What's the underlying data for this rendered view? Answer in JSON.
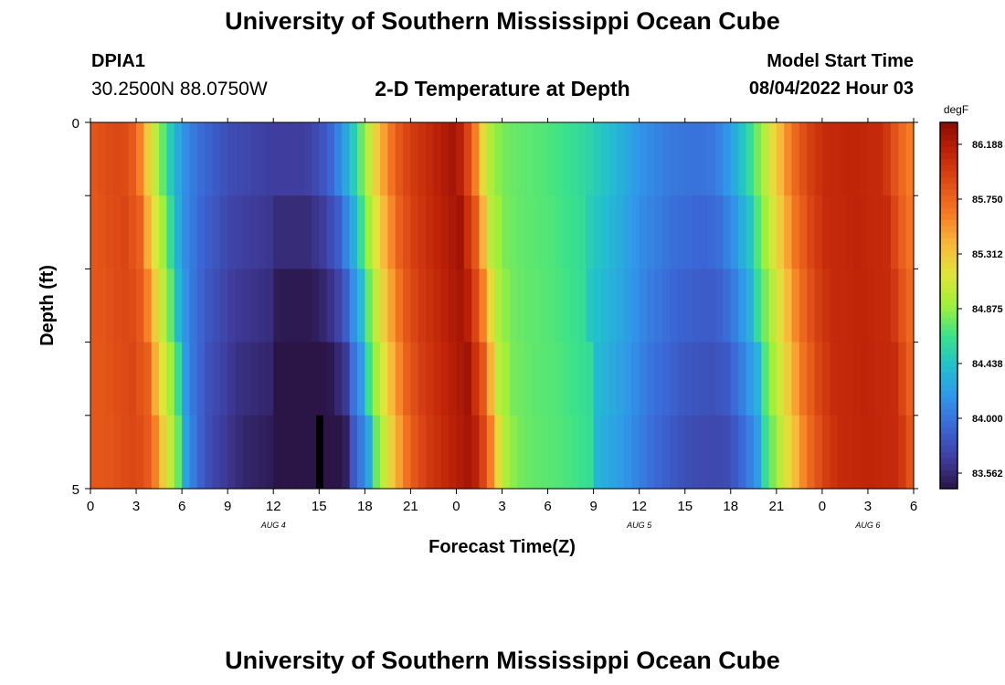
{
  "header": {
    "title": "University of Southern Mississippi Ocean Cube",
    "station_id": "DPIA1",
    "coords": "30.2500N  88.0750W",
    "plot_title": "2-D Temperature at Depth",
    "start_label": "Model Start Time",
    "start_value": "08/04/2022 Hour 03"
  },
  "footer": {
    "title": "University of Southern Mississippi Ocean Cube"
  },
  "chart_data": {
    "type": "heatmap",
    "title": "2-D Temperature at Depth",
    "xlabel": "Forecast Time(Z)",
    "ylabel": "Depth (ft)",
    "units": "degF",
    "x_hours_from_aug4_00z": [
      0,
      54
    ],
    "xtick_labels": [
      "0",
      "3",
      "6",
      "9",
      "12",
      "15",
      "18",
      "21",
      "0",
      "3",
      "6",
      "9",
      "12",
      "15",
      "18",
      "21",
      "0",
      "3",
      "6"
    ],
    "date_labels": [
      {
        "label": "AUG 4",
        "hour": 12
      },
      {
        "label": "AUG 5",
        "hour": 36
      },
      {
        "label": "AUG 6",
        "hour": 51
      }
    ],
    "ylim": [
      0,
      5
    ],
    "ytick_labels": [
      "0",
      "5"
    ],
    "depth_levels_ft": [
      0,
      1,
      2,
      3,
      4,
      5
    ],
    "colorbar_ticks": [
      "86.188",
      "85.750",
      "85.312",
      "84.875",
      "84.438",
      "84.000",
      "83.562"
    ],
    "colorbar_range": [
      83.4,
      86.4
    ],
    "colormap": [
      "#2a1546",
      "#3f3d9e",
      "#3b67d6",
      "#3196ea",
      "#22c0cf",
      "#3be28a",
      "#a0f03a",
      "#dfe53a",
      "#f9b93b",
      "#f67b23",
      "#e04e17",
      "#bf2408",
      "#8d0a03"
    ],
    "profile_hours": [
      0,
      2,
      3,
      3.5,
      4,
      4.5,
      5,
      5.5,
      6,
      7,
      9,
      12,
      14,
      15,
      16,
      17,
      18,
      19,
      20,
      21,
      23,
      24,
      25,
      26,
      27,
      28,
      30,
      32,
      34,
      36,
      38,
      40,
      41,
      42,
      43,
      44,
      45,
      46,
      47,
      48,
      50,
      52,
      53,
      54
    ],
    "profile_surface_degF": [
      85.85,
      85.95,
      85.8,
      85.45,
      85.15,
      84.9,
      84.6,
      84.35,
      84.15,
      83.95,
      83.75,
      83.65,
      83.65,
      83.75,
      83.95,
      84.35,
      84.9,
      85.4,
      85.8,
      86.0,
      86.2,
      86.3,
      85.85,
      85.0,
      84.8,
      84.75,
      84.7,
      84.6,
      84.4,
      84.15,
      84.0,
      83.95,
      84.0,
      84.2,
      84.5,
      84.9,
      85.3,
      85.7,
      85.95,
      86.1,
      86.15,
      86.1,
      85.8,
      85.6
    ]
  }
}
